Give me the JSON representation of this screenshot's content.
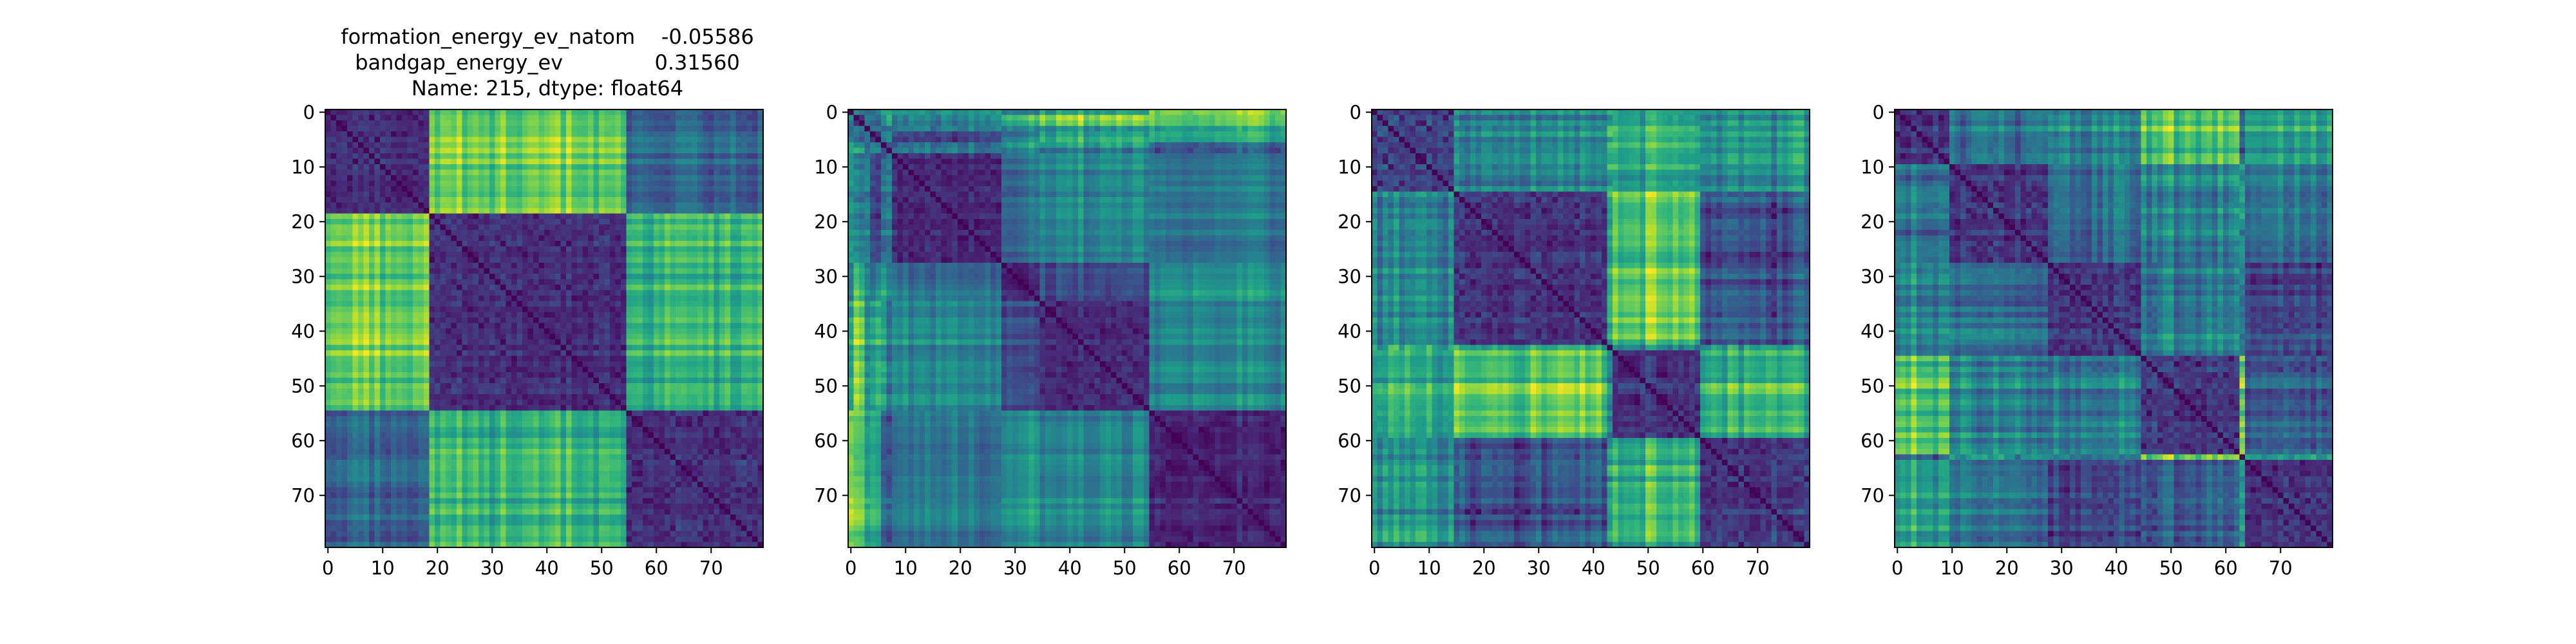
{
  "figure": {
    "title_lines": [
      "formation_energy_ev_natom    -0.05586",
      "bandgap_energy_ev              0.31560",
      "Name: 215, dtype: float64"
    ]
  },
  "chart_data": [
    {
      "type": "heatmap",
      "colormap": "viridis",
      "rows": 80,
      "cols": 80,
      "x_ticks": [
        0,
        10,
        20,
        30,
        40,
        50,
        60,
        70
      ],
      "y_ticks": [
        0,
        10,
        20,
        30,
        40,
        50,
        60,
        70
      ],
      "xlim": [
        0,
        79
      ],
      "ylim": [
        79,
        0
      ],
      "diagonal_value": 0,
      "block_boundaries": [
        19,
        55
      ],
      "bright_rows": [],
      "title": "formation_energy_ev_natom    -0.05586\nbandgap_energy_ev              0.31560\nName: 215, dtype: float64"
    },
    {
      "type": "heatmap",
      "colormap": "viridis",
      "rows": 80,
      "cols": 80,
      "x_ticks": [
        0,
        10,
        20,
        30,
        40,
        50,
        60,
        70
      ],
      "y_ticks": [
        0,
        10,
        20,
        30,
        40,
        50,
        60,
        70
      ],
      "xlim": [
        0,
        79
      ],
      "ylim": [
        79,
        0
      ],
      "diagonal_value": 0,
      "block_boundaries": [
        8,
        28,
        35,
        55
      ],
      "bright_rows": [
        0,
        1,
        2,
        3,
        4,
        5,
        6,
        7
      ]
    },
    {
      "type": "heatmap",
      "colormap": "viridis",
      "rows": 80,
      "cols": 80,
      "x_ticks": [
        0,
        10,
        20,
        30,
        40,
        50,
        60,
        70
      ],
      "y_ticks": [
        0,
        10,
        20,
        30,
        40,
        50,
        60,
        70
      ],
      "xlim": [
        0,
        79
      ],
      "ylim": [
        79,
        0
      ],
      "diagonal_value": 0,
      "block_boundaries": [
        15,
        43,
        60
      ],
      "bright_rows": [
        43
      ]
    },
    {
      "type": "heatmap",
      "colormap": "viridis",
      "rows": 80,
      "cols": 80,
      "x_ticks": [
        0,
        10,
        20,
        30,
        40,
        50,
        60,
        70
      ],
      "y_ticks": [
        0,
        10,
        20,
        30,
        40,
        50,
        60,
        70
      ],
      "xlim": [
        0,
        79
      ],
      "ylim": [
        79,
        0
      ],
      "diagonal_value": 0,
      "block_boundaries": [
        10,
        28,
        45,
        63
      ],
      "bright_rows": [
        63
      ]
    }
  ]
}
